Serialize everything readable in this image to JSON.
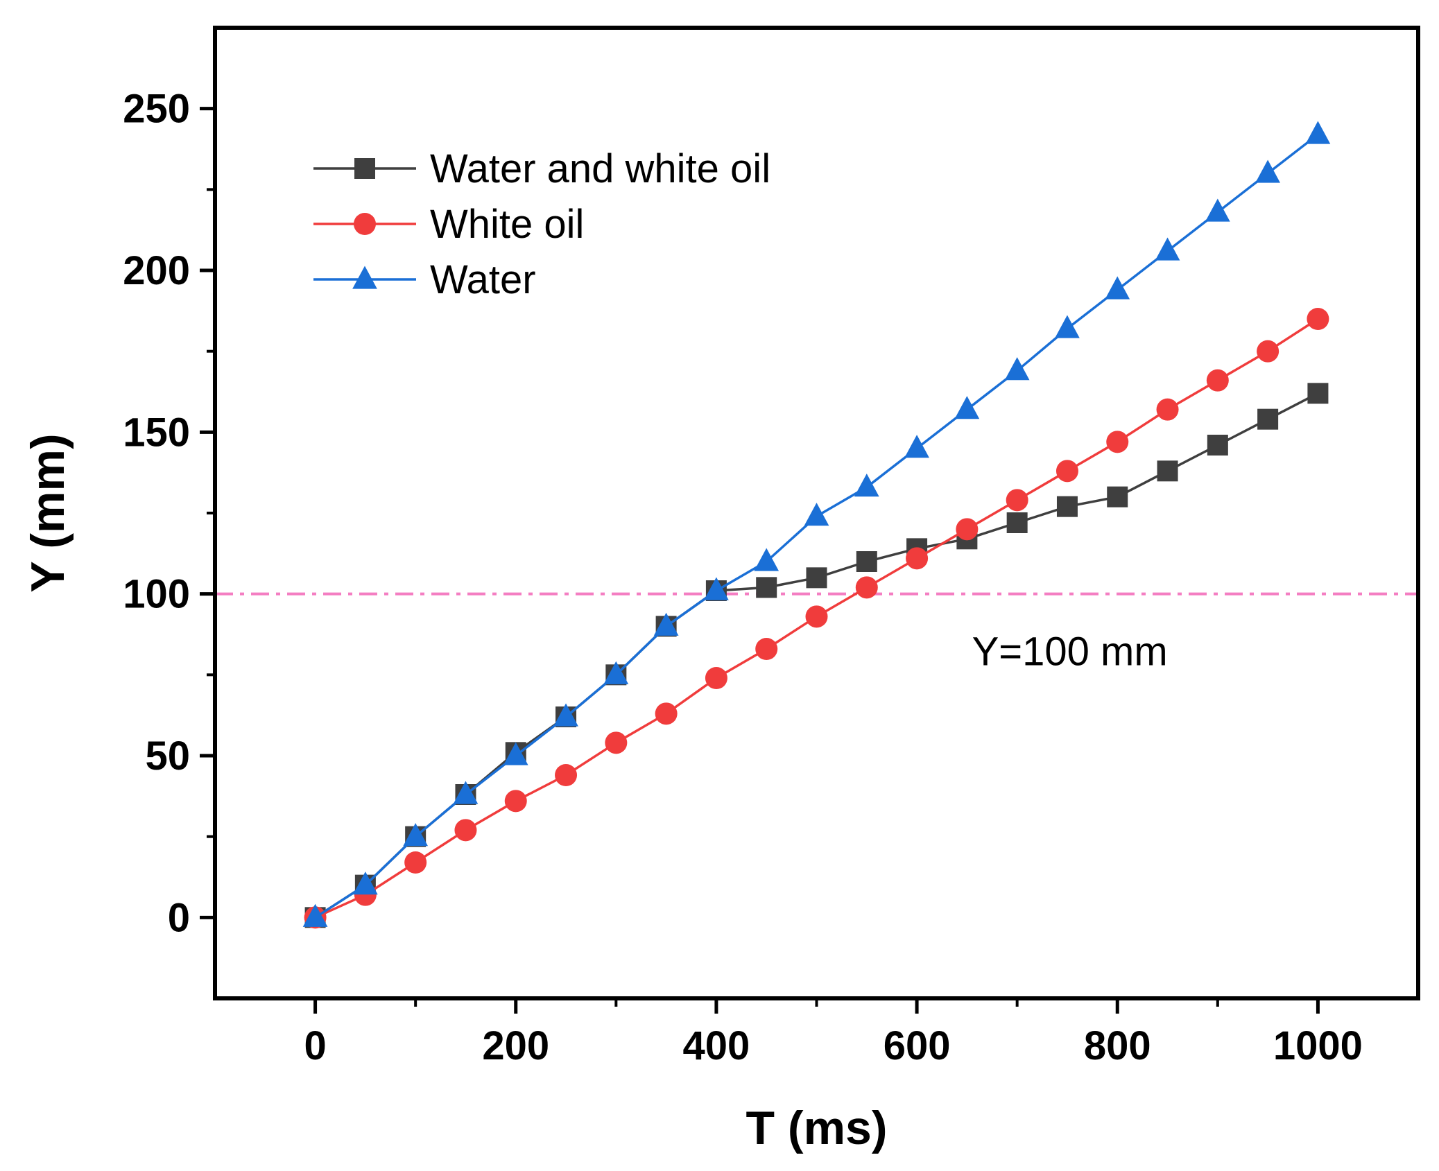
{
  "chart_data": {
    "type": "line",
    "title": "",
    "xlabel": "T (ms)",
    "ylabel": "Y (mm)",
    "xlim": [
      -100,
      1100
    ],
    "ylim": [
      -25,
      275
    ],
    "xticks": [
      0,
      200,
      400,
      600,
      800,
      1000
    ],
    "xticks_minor": [
      100,
      300,
      500,
      700,
      900
    ],
    "yticks": [
      0,
      50,
      100,
      150,
      200,
      250
    ],
    "yticks_minor": [
      25,
      75,
      125,
      175,
      225
    ],
    "grid": false,
    "legend_position": "top-left",
    "x": [
      0,
      50,
      100,
      150,
      200,
      250,
      300,
      350,
      400,
      450,
      500,
      550,
      600,
      650,
      700,
      750,
      800,
      850,
      900,
      950,
      1000
    ],
    "series": [
      {
        "name": "Water and white oil",
        "color": "#3f3f3f",
        "marker": "square",
        "values": [
          0,
          10,
          25,
          38,
          51,
          62,
          75,
          90,
          101,
          102,
          105,
          110,
          114,
          117,
          122,
          127,
          130,
          138,
          146,
          154,
          162
        ]
      },
      {
        "name": "White oil",
        "color": "#f03c3c",
        "marker": "circle",
        "values": [
          0,
          7,
          17,
          27,
          36,
          44,
          54,
          63,
          74,
          83,
          93,
          102,
          111,
          120,
          129,
          138,
          147,
          157,
          166,
          175,
          185
        ]
      },
      {
        "name": "Water",
        "color": "#1a6fd6",
        "marker": "triangle",
        "values": [
          0,
          10,
          25,
          38,
          50,
          62,
          75,
          90,
          101,
          110,
          124,
          133,
          145,
          157,
          169,
          182,
          194,
          206,
          218,
          230,
          242
        ]
      }
    ],
    "reference_line": {
      "y": 100,
      "style": "dash-dot",
      "color": "#f47ec2",
      "label": "Y=100 mm"
    }
  }
}
